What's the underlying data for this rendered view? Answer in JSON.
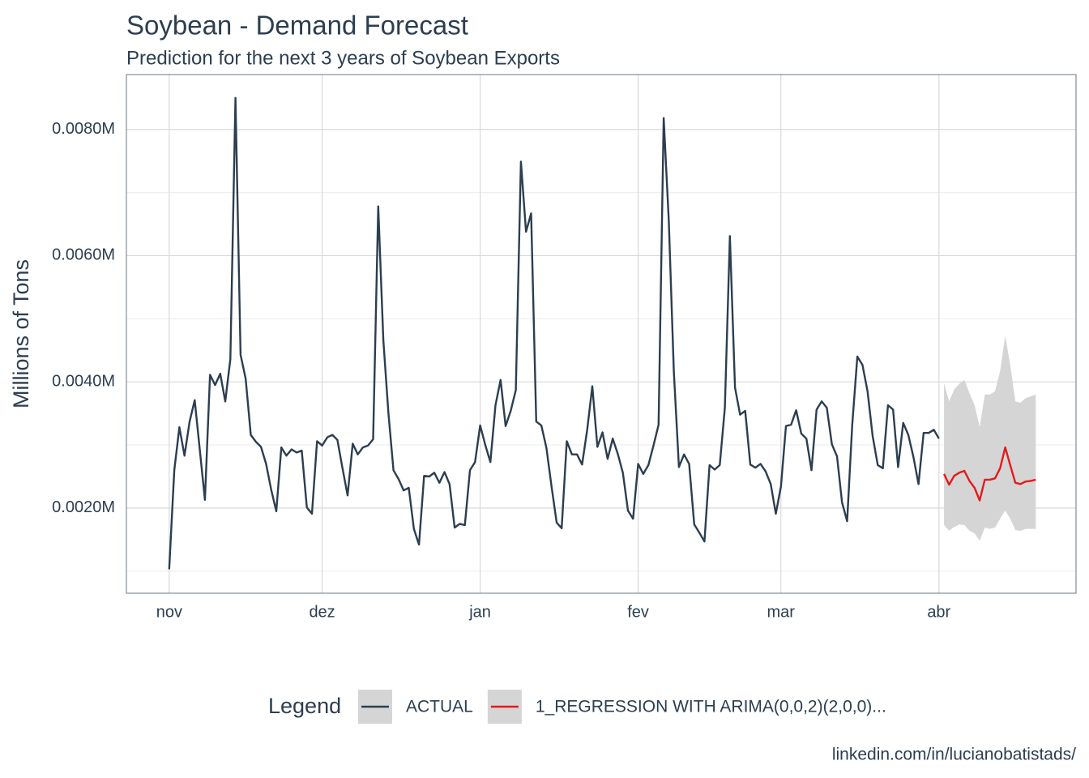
{
  "chart_data": {
    "type": "line",
    "title": "Soybean - Demand Forecast",
    "subtitle": "Prediction for the next 3 years of Soybean Exports",
    "y_label": "Millions of Tons",
    "caption": "linkedin.com/in/lucianobatistads/",
    "legend_title": "Legend",
    "legend_position": "bottom",
    "grid": true,
    "xlim": [
      -8.4,
      177.9
    ],
    "xticks": [
      {
        "value": 0,
        "label": "nov"
      },
      {
        "value": 30,
        "label": "dez"
      },
      {
        "value": 61,
        "label": "jan"
      },
      {
        "value": 92,
        "label": "fev"
      },
      {
        "value": 120,
        "label": "mar"
      },
      {
        "value": 151,
        "label": "abr"
      }
    ],
    "ylim": [
      0.00065,
      0.00887
    ],
    "yticks": [
      {
        "value": 0.002,
        "label": "0.0020M"
      },
      {
        "value": 0.004,
        "label": "0.0040M"
      },
      {
        "value": 0.006,
        "label": "0.0060M"
      },
      {
        "value": 0.008,
        "label": "0.0080M"
      }
    ],
    "y_minor_grid": [
      0.001,
      0.003,
      0.005,
      0.007
    ],
    "series": [
      {
        "name": "ACTUAL",
        "color": "#2c3e50",
        "x": [
          0,
          1,
          2,
          3,
          4,
          5,
          6,
          7,
          8,
          9,
          10,
          11,
          12,
          13,
          14,
          15,
          16,
          17,
          18,
          19,
          20,
          21,
          22,
          23,
          24,
          25,
          26,
          27,
          28,
          29,
          30,
          31,
          32,
          33,
          34,
          35,
          36,
          37,
          38,
          39,
          40,
          41,
          42,
          43,
          44,
          45,
          46,
          47,
          48,
          49,
          50,
          51,
          52,
          53,
          54,
          55,
          56,
          57,
          58,
          59,
          60,
          61,
          62,
          63,
          64,
          65,
          66,
          67,
          68,
          69,
          70,
          71,
          72,
          73,
          74,
          75,
          76,
          77,
          78,
          79,
          80,
          81,
          82,
          83,
          84,
          85,
          86,
          87,
          88,
          89,
          90,
          91,
          92,
          93,
          94,
          95,
          96,
          97,
          98,
          99,
          100,
          101,
          102,
          103,
          104,
          105,
          106,
          107,
          108,
          109,
          110,
          111,
          112,
          113,
          114,
          115,
          116,
          117,
          118,
          119,
          120,
          121,
          122,
          123,
          124,
          125,
          126,
          127,
          128,
          129,
          130,
          131,
          132,
          133,
          134,
          135,
          136,
          137,
          138,
          139,
          140,
          141,
          142,
          143,
          144,
          145,
          146,
          147,
          148,
          149,
          150,
          151
        ],
        "values": [
          0.00103,
          0.0026,
          0.00328,
          0.00283,
          0.00337,
          0.00371,
          0.00292,
          0.00213,
          0.00411,
          0.00395,
          0.00413,
          0.00369,
          0.00436,
          0.0085,
          0.00443,
          0.00405,
          0.00316,
          0.00305,
          0.00297,
          0.0027,
          0.00229,
          0.00195,
          0.00296,
          0.00283,
          0.00293,
          0.00288,
          0.00291,
          0.00201,
          0.00191,
          0.00306,
          0.00299,
          0.00312,
          0.00316,
          0.00308,
          0.00263,
          0.0022,
          0.00302,
          0.00285,
          0.00296,
          0.00299,
          0.00309,
          0.00678,
          0.00466,
          0.0035,
          0.0026,
          0.00246,
          0.00228,
          0.00232,
          0.00167,
          0.00142,
          0.00251,
          0.0025,
          0.00256,
          0.0024,
          0.00257,
          0.00238,
          0.00169,
          0.00175,
          0.00173,
          0.0026,
          0.00273,
          0.00331,
          0.003,
          0.00273,
          0.00363,
          0.00403,
          0.0033,
          0.00354,
          0.00387,
          0.00749,
          0.00638,
          0.00667,
          0.00337,
          0.00331,
          0.00295,
          0.00234,
          0.00177,
          0.00168,
          0.00306,
          0.00285,
          0.00285,
          0.00269,
          0.00324,
          0.00393,
          0.00297,
          0.0032,
          0.00278,
          0.0031,
          0.00286,
          0.00256,
          0.00196,
          0.00183,
          0.0027,
          0.00254,
          0.00268,
          0.00299,
          0.00332,
          0.00818,
          0.00655,
          0.00417,
          0.00265,
          0.00285,
          0.0027,
          0.00174,
          0.00161,
          0.00147,
          0.00268,
          0.00261,
          0.00268,
          0.00359,
          0.00631,
          0.00391,
          0.00348,
          0.00354,
          0.00269,
          0.00264,
          0.0027,
          0.00258,
          0.00238,
          0.00191,
          0.00234,
          0.0033,
          0.00332,
          0.00355,
          0.00318,
          0.0031,
          0.0026,
          0.00356,
          0.00369,
          0.00359,
          0.00301,
          0.00282,
          0.00209,
          0.00179,
          0.00332,
          0.0044,
          0.00427,
          0.00385,
          0.00314,
          0.00268,
          0.00263,
          0.00363,
          0.00356,
          0.00265,
          0.00335,
          0.00316,
          0.00281,
          0.00238,
          0.00319,
          0.00319,
          0.00324,
          0.0031
        ]
      },
      {
        "name": "1_REGRESSION WITH ARIMA(0,0,2)(2,0,0)...",
        "color": "#e31a1c",
        "band_color": "#d5d5d5",
        "x": [
          152,
          153,
          154,
          155,
          156,
          157,
          158,
          159,
          160,
          161,
          162,
          163,
          164,
          165,
          166,
          167,
          168,
          169,
          170
        ],
        "values": [
          0.00254,
          0.00237,
          0.00251,
          0.00256,
          0.00259,
          0.00243,
          0.00232,
          0.00212,
          0.00245,
          0.00245,
          0.00247,
          0.00263,
          0.00296,
          0.00268,
          0.0024,
          0.00238,
          0.00242,
          0.00243,
          0.00245
        ],
        "lower": [
          0.00173,
          0.00164,
          0.0017,
          0.00174,
          0.00173,
          0.00164,
          0.0016,
          0.00148,
          0.00169,
          0.00167,
          0.00169,
          0.00183,
          0.00196,
          0.00183,
          0.00165,
          0.00164,
          0.00167,
          0.00167,
          0.00167
        ],
        "upper": [
          0.00398,
          0.00369,
          0.00388,
          0.00397,
          0.00403,
          0.00382,
          0.00363,
          0.00328,
          0.0038,
          0.0038,
          0.00385,
          0.00417,
          0.00473,
          0.00427,
          0.00369,
          0.00367,
          0.00374,
          0.00377,
          0.0038
        ]
      }
    ]
  }
}
